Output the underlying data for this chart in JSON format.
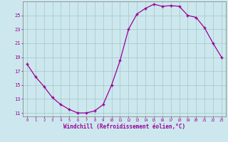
{
  "hours": [
    0,
    1,
    2,
    3,
    4,
    5,
    6,
    7,
    8,
    9,
    10,
    11,
    12,
    13,
    14,
    15,
    16,
    17,
    18,
    19,
    20,
    21,
    22,
    23
  ],
  "windchill": [
    18.0,
    16.2,
    14.8,
    13.2,
    12.2,
    11.5,
    11.0,
    11.0,
    11.3,
    12.2,
    15.0,
    18.5,
    23.0,
    25.2,
    26.0,
    26.6,
    26.3,
    26.4,
    26.3,
    25.0,
    24.7,
    23.2,
    21.0,
    19.0
  ],
  "line_color": "#990099",
  "marker": "+",
  "bg_color": "#cce8ee",
  "grid_color": "#aacccc",
  "xlabel": "Windchill (Refroidissement éolien,°C)",
  "xlabel_color": "#990099",
  "tick_color": "#990099",
  "spine_color": "#888888",
  "ylim": [
    10.5,
    27.0
  ],
  "xlim": [
    -0.5,
    23.5
  ],
  "yticks": [
    11,
    13,
    15,
    17,
    19,
    21,
    23,
    25
  ],
  "xticks": [
    0,
    1,
    2,
    3,
    4,
    5,
    6,
    7,
    8,
    9,
    10,
    11,
    12,
    13,
    14,
    15,
    16,
    17,
    18,
    19,
    20,
    21,
    22,
    23
  ]
}
